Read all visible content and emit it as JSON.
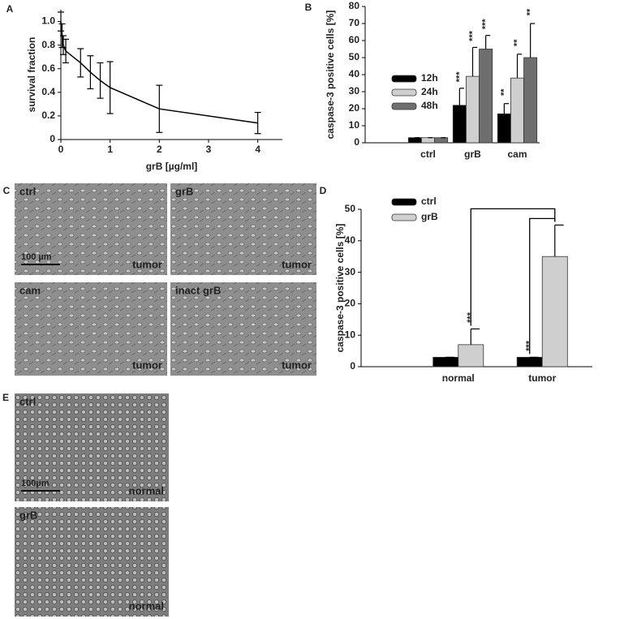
{
  "chart_data": [
    {
      "type": "line",
      "panel": "A",
      "xlabel": "grB [µg/ml]",
      "ylabel": "survival fraction",
      "x": [
        0,
        0.025,
        0.05,
        0.1,
        0.4,
        0.6,
        0.8,
        1,
        2,
        4
      ],
      "values": [
        1.0,
        0.88,
        0.8,
        0.75,
        0.65,
        0.57,
        0.5,
        0.44,
        0.26,
        0.14
      ],
      "errors": [
        0.08,
        0.1,
        0.08,
        0.1,
        0.12,
        0.14,
        0.15,
        0.22,
        0.2,
        0.09
      ],
      "color": "#000000",
      "xlim": [
        0,
        4.5
      ],
      "ylim": [
        0,
        1.1
      ],
      "xticks": [
        0,
        1,
        2,
        3,
        4
      ],
      "yticks": [
        0,
        0.2,
        0.4,
        0.6,
        0.8,
        {
          "value": 1,
          "label": "1.0"
        }
      ]
    },
    {
      "type": "bar",
      "panel": "B",
      "ylabel": "caspase-3 positive cells [%]",
      "categories": [
        "ctrl",
        "grB",
        "cam"
      ],
      "series": [
        {
          "name": "12h",
          "color": "#000000",
          "values": [
            3,
            22,
            17
          ],
          "errors": [
            0,
            10,
            6
          ],
          "significance": [
            null,
            "***",
            "**"
          ]
        },
        {
          "name": "24h",
          "color": "#cfcfcf",
          "values": [
            3,
            39,
            38
          ],
          "errors": [
            0,
            17,
            14
          ],
          "significance": [
            null,
            "***",
            "**"
          ]
        },
        {
          "name": "48h",
          "color": "#6e6e6e",
          "values": [
            3,
            55,
            50
          ],
          "errors": [
            0,
            8,
            20
          ],
          "significance": [
            null,
            "***",
            "**"
          ]
        }
      ],
      "ylim": [
        0,
        80
      ],
      "yticks": [
        0,
        10,
        20,
        30,
        40,
        50,
        60,
        70,
        80
      ],
      "legend": "left"
    },
    {
      "type": "bar",
      "panel": "D",
      "ylabel": "caspase-3 positive cells [%]",
      "categories": [
        "normal",
        "tumor"
      ],
      "series": [
        {
          "name": "ctrl",
          "color": "#000000",
          "values": [
            3,
            3
          ],
          "errors": [
            0,
            0
          ],
          "significance": [
            null,
            "***"
          ]
        },
        {
          "name": "grB",
          "color": "#cfcfcf",
          "values": [
            7,
            35
          ],
          "errors": [
            5,
            10
          ],
          "significance": [
            "***",
            null
          ]
        }
      ],
      "ylim": [
        0,
        50
      ],
      "yticks": [
        0,
        10,
        20,
        30,
        40,
        50
      ],
      "legend": "upper left"
    }
  ],
  "micrographs": [
    {
      "panel": "C",
      "tiles": [
        {
          "label": "ctrl",
          "tissue": "tumor",
          "scale_bar": "100 µm"
        },
        {
          "label": "grB",
          "tissue": "tumor"
        },
        {
          "label": "cam",
          "tissue": "tumor"
        },
        {
          "label": "inact grB",
          "tissue": "tumor"
        }
      ]
    },
    {
      "panel": "E",
      "tiles": [
        {
          "label": "ctrl",
          "tissue": "normal",
          "scale_bar": "100µm"
        },
        {
          "label": "grB",
          "tissue": "normal"
        }
      ]
    }
  ]
}
